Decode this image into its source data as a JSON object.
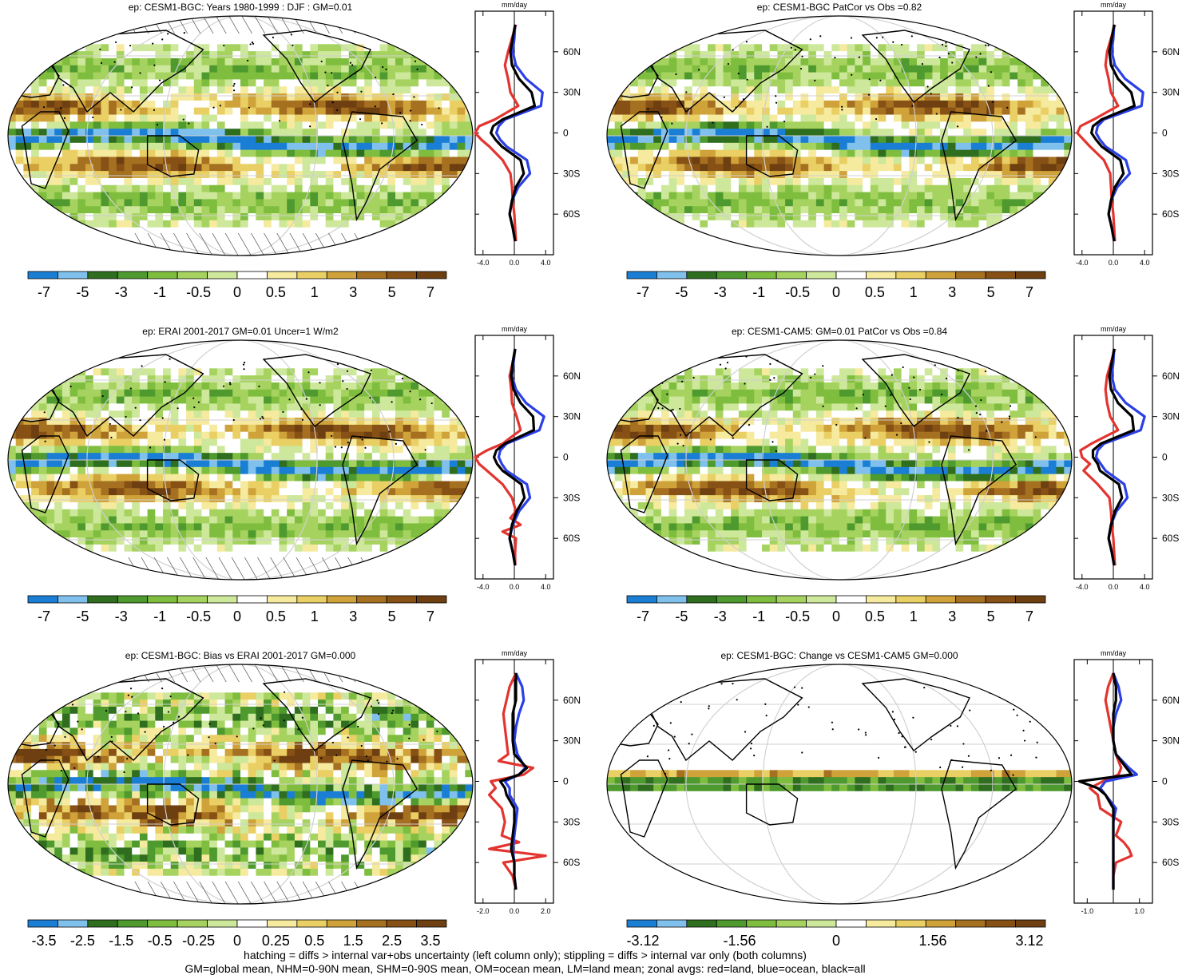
{
  "colors": {
    "diverging": [
      "#1a7fd4",
      "#7fc1ec",
      "#2f6e1e",
      "#4e9a2e",
      "#7fbd3f",
      "#a6d35f",
      "#cde89a",
      "#ffffff",
      "#f5ea9d",
      "#e9cf64",
      "#cfa23a",
      "#a67021",
      "#875015",
      "#6e3f10"
    ],
    "land": "#e3342f",
    "ocean": "#2b3fe6",
    "all": "#000000"
  },
  "footer": {
    "line1": "hatching = diffs > internal var+obs uncertainty (left column only); stippling = diffs > internal var only (both columns)",
    "line2": "GM=global mean, NHM=0-90N mean, SHM=0-90S mean, OM=ocean mean, LM=land mean; zonal avgs: red=land, blue=ocean, black=all"
  },
  "chart_data": [
    {
      "type": "heatmap",
      "title": "ep: CESM1-BGC: Years 1980-1999 : DJF : GM=0.01",
      "colorbar_labels": [
        "-7",
        "-5",
        "-3",
        "-1",
        "-0.5",
        "0",
        "0.5",
        "1",
        "3",
        "5",
        "7"
      ],
      "zonal": {
        "unit": "mm/day",
        "x_ticks": [
          "-4.0",
          "0.0",
          "4.0"
        ],
        "xlim": [
          -5,
          5
        ],
        "lat_ticks": [
          "60N",
          "30N",
          "0",
          "30S",
          "60S"
        ],
        "series": [
          {
            "name": "red=land",
            "lat": [
              80,
              70,
              60,
              50,
              40,
              30,
              20,
              10,
              5,
              0,
              -5,
              -10,
              -20,
              -30,
              -40,
              -50,
              -60,
              -70,
              -80
            ],
            "values": [
              0.2,
              -0.3,
              -0.8,
              -1.2,
              -0.8,
              -0.5,
              0.5,
              -2.5,
              -4.5,
              -5.0,
              -4.2,
              -3.2,
              -1.5,
              -0.5,
              -0.3,
              -0.2,
              0.0,
              0.1,
              0.2
            ]
          },
          {
            "name": "blue=ocean",
            "lat": [
              80,
              70,
              60,
              50,
              40,
              30,
              20,
              10,
              5,
              0,
              -5,
              -10,
              -20,
              -30,
              -40,
              -50,
              -60,
              -70,
              -80
            ],
            "values": [
              0.1,
              0.0,
              -0.2,
              0.2,
              1.5,
              3.6,
              3.4,
              -1.2,
              -2.0,
              -2.3,
              -1.8,
              -1.0,
              1.6,
              2.0,
              0.5,
              -0.3,
              -0.6,
              -0.2,
              0.1
            ]
          },
          {
            "name": "black=all",
            "lat": [
              80,
              70,
              60,
              50,
              40,
              30,
              20,
              10,
              5,
              0,
              -5,
              -10,
              -20,
              -30,
              -40,
              -50,
              -60,
              -70,
              -80
            ],
            "values": [
              0.1,
              -0.2,
              -0.5,
              -0.3,
              0.6,
              2.2,
              2.6,
              -1.5,
              -2.7,
              -3.0,
              -2.4,
              -1.6,
              0.8,
              1.2,
              0.2,
              -0.3,
              -0.6,
              -0.2,
              0.1
            ]
          }
        ]
      }
    },
    {
      "type": "heatmap",
      "title": "ep: CESM1-BGC PatCor vs Obs =0.82",
      "colorbar_labels": [
        "-7",
        "-5",
        "-3",
        "-1",
        "-0.5",
        "0",
        "0.5",
        "1",
        "3",
        "5",
        "7"
      ],
      "zonal": {
        "unit": "mm/day",
        "x_ticks": [
          "-4.0",
          "0.0",
          "4.0"
        ],
        "xlim": [
          -5,
          5
        ],
        "lat_ticks": [
          "60N",
          "30N",
          "0",
          "30S",
          "60S"
        ],
        "series": [
          {
            "name": "red=land",
            "lat": [
              80,
              70,
              60,
              50,
              40,
              30,
              20,
              10,
              5,
              0,
              -5,
              -10,
              -20,
              -30,
              -40,
              -50,
              -60,
              -70,
              -80
            ],
            "values": [
              0.2,
              -0.3,
              -0.8,
              -1.0,
              -0.6,
              -0.3,
              0.6,
              -2.5,
              -4.2,
              -4.6,
              -3.8,
              -3.0,
              -1.2,
              -0.4,
              -0.3,
              -0.2,
              0.0,
              0.1,
              0.2
            ]
          },
          {
            "name": "blue=ocean",
            "lat": [
              80,
              70,
              60,
              50,
              40,
              30,
              20,
              10,
              5,
              0,
              -5,
              -10,
              -20,
              -30,
              -40,
              -50,
              -60,
              -70,
              -80
            ],
            "values": [
              0.1,
              0.0,
              -0.2,
              0.2,
              1.5,
              3.8,
              3.6,
              -1.2,
              -2.0,
              -2.2,
              -1.7,
              -1.0,
              1.6,
              2.1,
              0.5,
              -0.3,
              -0.6,
              -0.2,
              0.1
            ]
          },
          {
            "name": "black=all",
            "lat": [
              80,
              70,
              60,
              50,
              40,
              30,
              20,
              10,
              5,
              0,
              -5,
              -10,
              -20,
              -30,
              -40,
              -50,
              -60,
              -70,
              -80
            ],
            "values": [
              0.1,
              -0.2,
              -0.5,
              -0.3,
              0.6,
              2.3,
              2.7,
              -1.5,
              -2.6,
              -2.8,
              -2.2,
              -1.5,
              0.9,
              1.3,
              0.2,
              -0.3,
              -0.6,
              -0.2,
              0.1
            ]
          }
        ]
      }
    },
    {
      "type": "heatmap",
      "title": "ep: ERAI 2001-2017 GM=0.01 Uncer=1 W/m2",
      "colorbar_labels": [
        "-7",
        "-5",
        "-3",
        "-1",
        "-0.5",
        "0",
        "0.5",
        "1",
        "3",
        "5",
        "7"
      ],
      "zonal": {
        "unit": "mm/day",
        "x_ticks": [
          "-4.0",
          "0.0",
          "4.0"
        ],
        "xlim": [
          -5,
          5
        ],
        "lat_ticks": [
          "60N",
          "30N",
          "0",
          "30S",
          "60S"
        ],
        "series": [
          {
            "name": "red=land",
            "lat": [
              80,
              70,
              60,
              50,
              40,
              30,
              20,
              10,
              5,
              0,
              -5,
              -10,
              -20,
              -30,
              -40,
              -45,
              -50,
              -55,
              -60,
              -70,
              -80
            ],
            "values": [
              0.1,
              -0.2,
              -0.6,
              -0.4,
              -0.3,
              0.3,
              0.8,
              -1.5,
              -3.5,
              -5.0,
              -4.5,
              -3.5,
              -1.5,
              -0.3,
              0.2,
              -0.5,
              0.8,
              -1.5,
              0.2,
              0.1,
              0.1
            ]
          },
          {
            "name": "blue=ocean",
            "lat": [
              80,
              70,
              60,
              50,
              40,
              30,
              20,
              10,
              5,
              0,
              -5,
              -10,
              -20,
              -30,
              -40,
              -50,
              -60,
              -70,
              -80
            ],
            "values": [
              0.1,
              -0.1,
              -0.3,
              0.2,
              1.5,
              3.8,
              3.2,
              -1.0,
              -1.8,
              -2.0,
              -1.6,
              -1.0,
              1.6,
              2.0,
              0.6,
              -0.2,
              -0.6,
              -0.2,
              0.1
            ]
          },
          {
            "name": "black=all",
            "lat": [
              80,
              70,
              60,
              50,
              40,
              30,
              20,
              10,
              5,
              0,
              -5,
              -10,
              -20,
              -30,
              -40,
              -50,
              -60,
              -70,
              -80
            ],
            "values": [
              0.1,
              -0.2,
              -0.4,
              -0.1,
              0.8,
              2.4,
              2.5,
              -1.2,
              -2.3,
              -2.6,
              -2.2,
              -1.5,
              0.9,
              1.3,
              0.3,
              -0.3,
              -0.6,
              -0.2,
              0.1
            ]
          }
        ]
      }
    },
    {
      "type": "heatmap",
      "title": "ep: CESM1-CAM5: GM=0.01 PatCor vs Obs =0.84",
      "colorbar_labels": [
        "-7",
        "-5",
        "-3",
        "-1",
        "-0.5",
        "0",
        "0.5",
        "1",
        "3",
        "5",
        "7"
      ],
      "zonal": {
        "unit": "mm/day",
        "x_ticks": [
          "-4.0",
          "0.0",
          "4.0"
        ],
        "xlim": [
          -5,
          5
        ],
        "lat_ticks": [
          "60N",
          "30N",
          "0",
          "30S",
          "60S"
        ],
        "series": [
          {
            "name": "red=land",
            "lat": [
              80,
              70,
              60,
              50,
              40,
              30,
              20,
              10,
              5,
              0,
              -5,
              -10,
              -20,
              -30,
              -40,
              -50,
              -60,
              -70,
              -80
            ],
            "values": [
              0.2,
              -0.3,
              -0.8,
              -1.0,
              -0.8,
              -0.4,
              0.6,
              -2.8,
              -4.2,
              -4.0,
              -3.0,
              -3.8,
              -2.0,
              -0.5,
              -0.3,
              -0.2,
              0.0,
              0.1,
              0.2
            ]
          },
          {
            "name": "blue=ocean",
            "lat": [
              80,
              70,
              60,
              50,
              40,
              30,
              20,
              10,
              5,
              0,
              -5,
              -10,
              -20,
              -30,
              -40,
              -50,
              -60,
              -70,
              -80
            ],
            "values": [
              0.1,
              0.0,
              -0.2,
              0.2,
              1.6,
              4.0,
              3.5,
              -1.2,
              -2.0,
              -2.2,
              -1.6,
              -1.0,
              1.4,
              1.8,
              0.4,
              -0.3,
              -0.6,
              -0.2,
              0.1
            ]
          },
          {
            "name": "black=all",
            "lat": [
              80,
              70,
              60,
              50,
              40,
              30,
              20,
              10,
              5,
              0,
              -5,
              -10,
              -20,
              -30,
              -40,
              -50,
              -60,
              -70,
              -80
            ],
            "values": [
              0.1,
              -0.2,
              -0.5,
              -0.3,
              0.6,
              2.4,
              2.6,
              -1.6,
              -2.6,
              -2.6,
              -2.0,
              -1.7,
              0.7,
              1.1,
              0.2,
              -0.3,
              -0.6,
              -0.2,
              0.1
            ]
          }
        ]
      }
    },
    {
      "type": "heatmap",
      "title": "ep: CESM1-BGC: Bias vs ERAI 2001-2017 GM=0.000",
      "colorbar_labels": [
        "-3.5",
        "-2.5",
        "-1.5",
        "-0.5",
        "-0.25",
        "0",
        "0.25",
        "0.5",
        "1.5",
        "2.5",
        "3.5"
      ],
      "zonal": {
        "unit": "mm/day",
        "x_ticks": [
          "-2.0",
          "0.0",
          "2.0"
        ],
        "xlim": [
          -2.5,
          2.5
        ],
        "lat_ticks": [
          "60N",
          "30N",
          "0",
          "30S",
          "60S"
        ],
        "series": [
          {
            "name": "red=land",
            "lat": [
              80,
              70,
              60,
              50,
              40,
              30,
              20,
              15,
              10,
              5,
              0,
              -5,
              -10,
              -20,
              -30,
              -40,
              -45,
              -50,
              -55,
              -60,
              -70,
              -80
            ],
            "values": [
              0.1,
              -0.3,
              -0.5,
              -0.7,
              -0.6,
              -0.5,
              -0.4,
              -1.0,
              1.2,
              0.6,
              -1.5,
              -1.2,
              -1.6,
              -0.8,
              -0.6,
              -0.8,
              0.3,
              -1.6,
              2.0,
              -0.7,
              -0.1,
              0.1
            ]
          },
          {
            "name": "blue=ocean",
            "lat": [
              80,
              70,
              60,
              50,
              40,
              30,
              20,
              10,
              5,
              0,
              -5,
              -10,
              -20,
              -30,
              -40,
              -50,
              -60,
              -70,
              -80
            ],
            "values": [
              0.1,
              0.5,
              0.6,
              0.3,
              0.1,
              0.0,
              0.2,
              0.7,
              0.3,
              -0.6,
              -0.3,
              -0.3,
              0.2,
              0.1,
              0.0,
              -0.1,
              0.0,
              0.0,
              0.1
            ]
          },
          {
            "name": "black=all",
            "lat": [
              80,
              70,
              60,
              50,
              40,
              30,
              20,
              10,
              5,
              0,
              -5,
              -10,
              -20,
              -30,
              -40,
              -50,
              -60,
              -70,
              -80
            ],
            "values": [
              0.1,
              0.1,
              0.1,
              -0.1,
              -0.1,
              -0.1,
              0.0,
              0.8,
              0.3,
              -0.9,
              -0.6,
              -0.5,
              0.0,
              0.0,
              -0.1,
              -0.2,
              0.0,
              0.0,
              0.1
            ]
          }
        ]
      }
    },
    {
      "type": "heatmap",
      "title": "ep: CESM1-BGC: Change vs CESM1-CAM5 GM=0.000",
      "colorbar_labels": [
        "-3.12",
        "-1.56",
        "0",
        "1.56",
        "3.12"
      ],
      "zonal": {
        "unit": "mm/day",
        "x_ticks": [
          "-1.0",
          "1.0"
        ],
        "xlim": [
          -1.5,
          1.5
        ],
        "lat_ticks": [
          "60N",
          "30N",
          "0",
          "30S",
          "60S"
        ],
        "series": [
          {
            "name": "red=land",
            "lat": [
              80,
              70,
              60,
              50,
              40,
              30,
              20,
              10,
              5,
              0,
              -5,
              -10,
              -20,
              -30,
              -40,
              -45,
              -50,
              -55,
              -60,
              -70,
              -80
            ],
            "values": [
              0.0,
              -0.2,
              -0.3,
              -0.2,
              -0.1,
              0.0,
              0.1,
              0.3,
              0.2,
              -0.4,
              -0.9,
              -0.6,
              -0.5,
              0.3,
              0.1,
              0.4,
              0.6,
              0.7,
              0.1,
              0.0,
              0.0
            ]
          },
          {
            "name": "blue=ocean",
            "lat": [
              80,
              70,
              60,
              50,
              40,
              30,
              20,
              10,
              5,
              0,
              -5,
              -10,
              -20,
              -30,
              -40,
              -50,
              -60,
              -70,
              -80
            ],
            "values": [
              0.0,
              0.2,
              0.3,
              0.1,
              0.0,
              0.0,
              0.1,
              0.6,
              0.9,
              -0.3,
              -0.5,
              -0.3,
              0.1,
              0.0,
              0.0,
              0.0,
              0.0,
              0.0,
              0.0
            ]
          },
          {
            "name": "black=all",
            "lat": [
              80,
              70,
              60,
              50,
              40,
              30,
              20,
              10,
              5,
              0,
              -5,
              -10,
              -20,
              -30,
              -40,
              -50,
              -60,
              -70,
              -80
            ],
            "values": [
              0.0,
              0.1,
              0.1,
              0.0,
              0.0,
              0.0,
              0.1,
              0.5,
              0.7,
              -1.3,
              -0.6,
              -0.3,
              0.0,
              0.0,
              0.0,
              0.0,
              0.0,
              0.0,
              0.0
            ]
          }
        ]
      }
    }
  ]
}
